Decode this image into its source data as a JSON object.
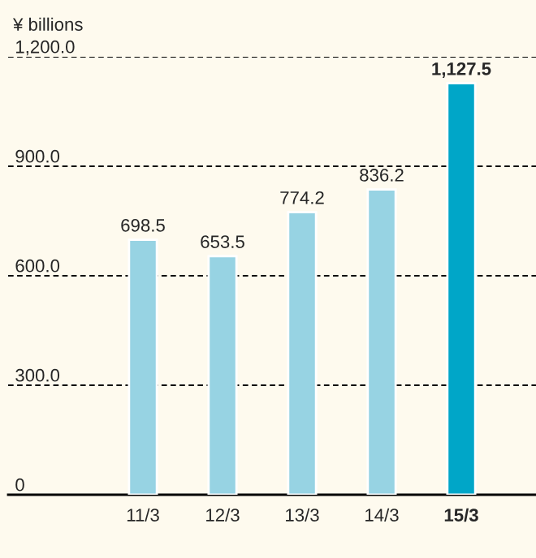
{
  "chart_data": {
    "type": "bar",
    "ylabel": "¥ billions",
    "categories": [
      "11/3",
      "12/3",
      "13/3",
      "14/3",
      "15/3"
    ],
    "values": [
      698.5,
      653.5,
      774.2,
      836.2,
      1127.5
    ],
    "colors": [
      "#97d3e3",
      "#97d3e3",
      "#97d3e3",
      "#97d3e3",
      "#00a6c8"
    ],
    "ylim": [
      0,
      1200
    ],
    "yticks": [
      0,
      {
        "value": 300,
        "label": "300.0"
      },
      {
        "value": 600,
        "label": "600.0"
      },
      {
        "value": 900,
        "label": "900.0"
      },
      {
        "value": 1200,
        "label": "1,200.0"
      }
    ],
    "value_labels": [
      "698.5",
      "653.5",
      "774.2",
      "836.2",
      "1,127.5"
    ],
    "grid": "y",
    "legend": false
  }
}
